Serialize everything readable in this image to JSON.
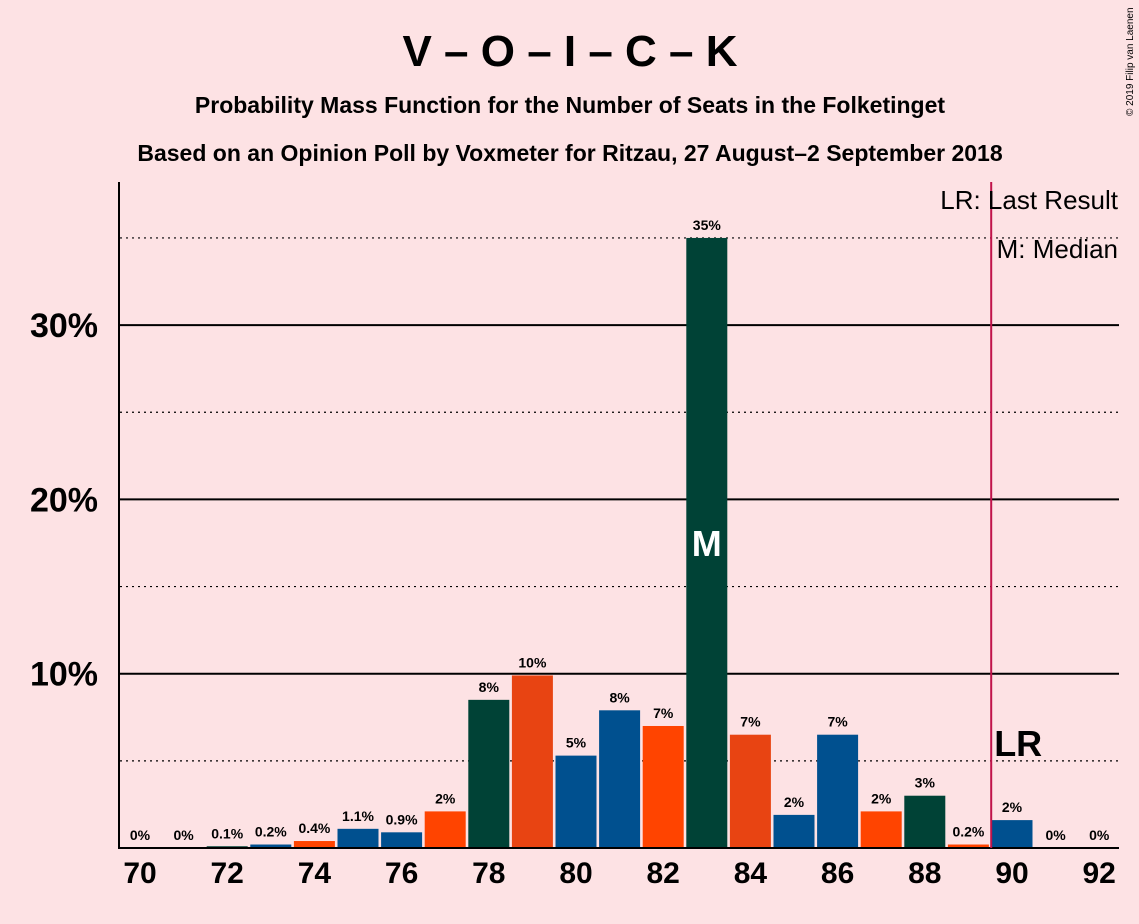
{
  "chart_data": {
    "type": "bar",
    "title": "V – O – I – C – K",
    "subtitle": "Probability Mass Function for the Number of Seats in the Folketinget",
    "subtitle2": "Based on an Opinion Poll by Voxmeter for Ritzau, 27 August–2 September 2018",
    "copyright": "© 2019 Filip van Laenen",
    "x": [
      70,
      71,
      72,
      73,
      74,
      75,
      76,
      77,
      78,
      79,
      80,
      81,
      82,
      83,
      84,
      85,
      86,
      87,
      88,
      89,
      90,
      91,
      92
    ],
    "values": [
      0,
      0,
      0.1,
      0.2,
      0.4,
      1.1,
      0.9,
      2.1,
      8.5,
      9.9,
      5.3,
      7.9,
      7.0,
      35.0,
      6.5,
      1.9,
      6.5,
      2.1,
      3.0,
      0.2,
      1.6,
      0,
      0
    ],
    "labels": [
      "0%",
      "0%",
      "0.1%",
      "0.2%",
      "0.4%",
      "1.1%",
      "0.9%",
      "2%",
      "8%",
      "10%",
      "5%",
      "8%",
      "7%",
      "35%",
      "7%",
      "2%",
      "7%",
      "2%",
      "3%",
      "0.2%",
      "2%",
      "0%",
      "0%"
    ],
    "colors": [
      "#00508F",
      "#E84412",
      "#004236",
      "#00508F",
      "#FF4400",
      "#00508F",
      "#00508F",
      "#FF4400",
      "#004236",
      "#E84412",
      "#00508F",
      "#00508F",
      "#FF4400",
      "#004236",
      "#E84412",
      "#00508F",
      "#00508F",
      "#FF4400",
      "#004236",
      "#FF4400",
      "#00508F",
      "#00508F",
      "#00508F"
    ],
    "x_ticks": [
      "70",
      "72",
      "74",
      "76",
      "78",
      "80",
      "82",
      "84",
      "86",
      "88",
      "90",
      "92"
    ],
    "y_ticks": [
      "10%",
      "20%",
      "30%"
    ],
    "ylim": [
      0,
      38
    ],
    "median": 83,
    "median_label": "M",
    "last_result": 90,
    "last_result_label": "LR",
    "legend": [
      "LR: Last Result",
      "M: Median"
    ]
  }
}
